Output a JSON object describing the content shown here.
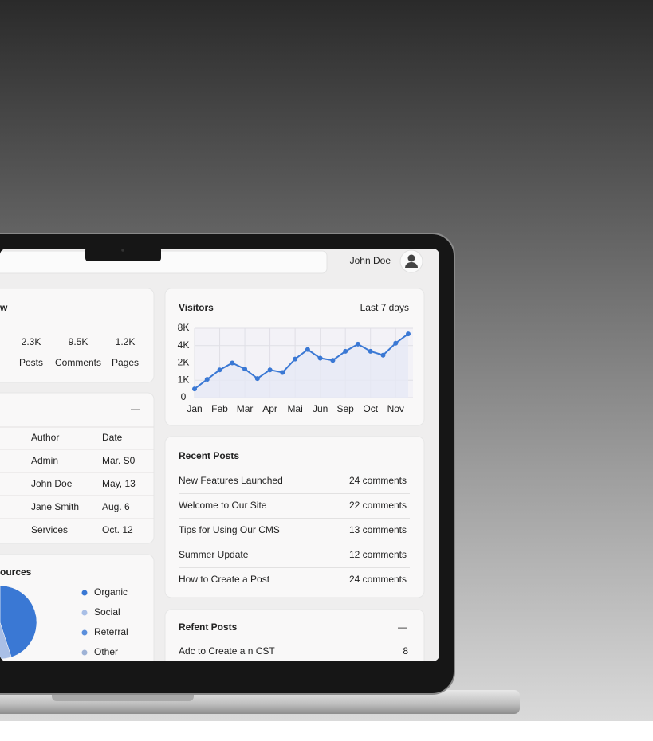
{
  "header": {
    "user": "John Doe"
  },
  "overview": {
    "title": "w",
    "stats": [
      {
        "value": "2.3K",
        "label": "Posts"
      },
      {
        "value": "9.5K",
        "label": "Comments"
      },
      {
        "value": "1.2K",
        "label": "Pages"
      }
    ]
  },
  "posts_table": {
    "columns": [
      "Author",
      "Date"
    ],
    "rows": [
      [
        "Admin",
        "Mar. S0"
      ],
      [
        "John Doe",
        "May, 13"
      ],
      [
        "Jane Smith",
        "Aug. 6"
      ],
      [
        "Services",
        "Oct. 12"
      ]
    ]
  },
  "recent_posts": {
    "title": "Recent Posts",
    "rows": [
      {
        "title": "New Features Launched",
        "count": "24  comments"
      },
      {
        "title": "Welcome to Our Site",
        "count": "22  comments"
      },
      {
        "title": "Tips for Using Our CMS",
        "count": "13  comments"
      },
      {
        "title": "Summer Update",
        "count": "12  comments"
      },
      {
        "title": "How to Create a Post",
        "count": "24  comments"
      }
    ]
  },
  "refent_posts": {
    "title": "Refent Posts",
    "rows": [
      {
        "title": "Adc to Create a n CST",
        "count": "8"
      }
    ]
  },
  "chart_data": [
    {
      "type": "line",
      "title": "Visitors",
      "subtitle": "Last 7 days",
      "categories": [
        "Jan",
        null,
        "Feb",
        null,
        "Mar",
        null,
        "Apr",
        null,
        "Mai",
        null,
        "Jun",
        null,
        "Sep",
        null,
        "Oct",
        null,
        "Nov",
        null
      ],
      "series": [
        {
          "name": "Visitors",
          "color": "#3a78d4",
          "values": [
            500,
            1050,
            1600,
            2000,
            1650,
            1100,
            1600,
            1450,
            2450,
            3550,
            2550,
            2300,
            3350,
            4350,
            3350,
            2900,
            4550,
            6700
          ]
        }
      ],
      "ylim": [
        0,
        8000
      ],
      "yticks": [
        0,
        {
          "value": 1000,
          "label": "1K"
        },
        {
          "value": 2000,
          "label": "2K"
        },
        {
          "value": 4000,
          "label": "4K"
        },
        {
          "value": 8000,
          "label": "8K"
        }
      ],
      "grid": true
    },
    {
      "type": "pie",
      "title": "ources",
      "categories": [
        "Organic",
        "Social",
        "Reterral",
        "Other"
      ],
      "values": [
        45,
        20,
        25,
        10
      ],
      "colors": [
        "#3a78d4",
        "#a9bfe6",
        "#5b8fdc",
        "#9fb3d6"
      ]
    }
  ]
}
